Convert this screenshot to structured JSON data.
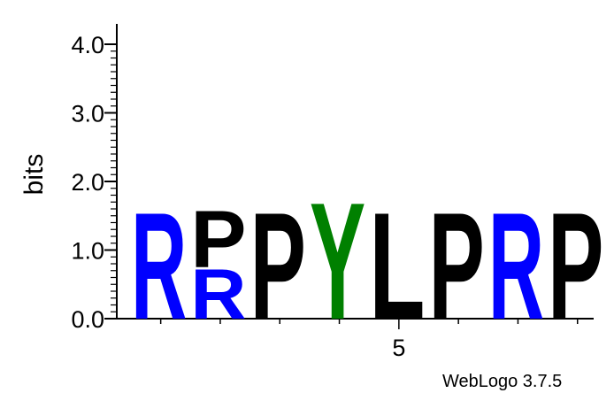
{
  "chart_data": {
    "type": "sequence-logo",
    "ylabel": "bits",
    "ylim": [
      0,
      4.0
    ],
    "yticks": [
      "0.0",
      "1.0",
      "2.0",
      "3.0",
      "4.0"
    ],
    "xticks": [
      {
        "position": 5,
        "label": "5"
      }
    ],
    "positions": [
      {
        "index": 1,
        "letters": [
          {
            "char": "R",
            "bits": 1.6,
            "color": "#0000ff"
          }
        ]
      },
      {
        "index": 2,
        "letters": [
          {
            "char": "R",
            "bits": 0.75,
            "color": "#0000ff"
          },
          {
            "char": "P",
            "bits": 0.85,
            "color": "#000000"
          }
        ]
      },
      {
        "index": 3,
        "letters": [
          {
            "char": "P",
            "bits": 1.6,
            "color": "#000000"
          }
        ]
      },
      {
        "index": 4,
        "letters": [
          {
            "char": "Y",
            "bits": 1.75,
            "color": "#008000"
          }
        ]
      },
      {
        "index": 5,
        "letters": [
          {
            "char": "L",
            "bits": 1.6,
            "color": "#000000"
          }
        ]
      },
      {
        "index": 6,
        "letters": [
          {
            "char": "P",
            "bits": 1.6,
            "color": "#000000"
          }
        ]
      },
      {
        "index": 7,
        "letters": [
          {
            "char": "R",
            "bits": 1.6,
            "color": "#0000ff"
          }
        ]
      },
      {
        "index": 8,
        "letters": [
          {
            "char": "P",
            "bits": 1.6,
            "color": "#000000"
          }
        ]
      }
    ]
  },
  "credit": "WebLogo 3.7.5"
}
